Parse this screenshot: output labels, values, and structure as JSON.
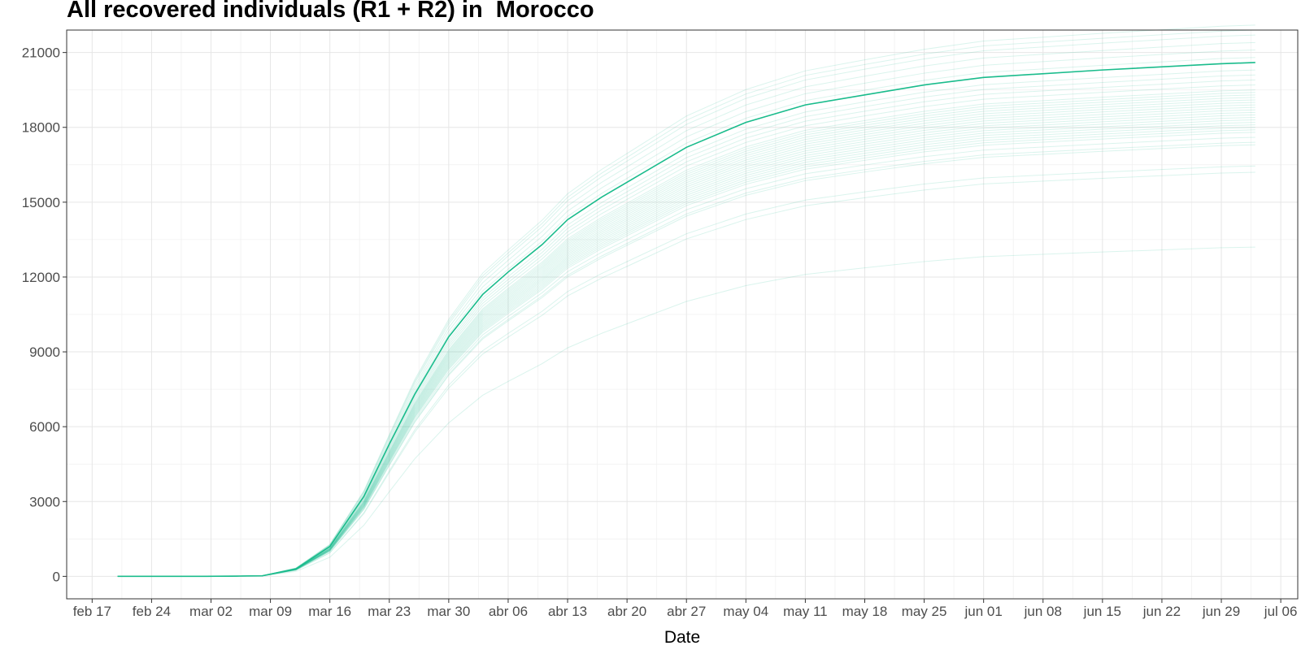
{
  "chart_data": {
    "type": "line",
    "title": "All recovered individuals (R1 + R2) in  Morocco",
    "xlabel": "Date",
    "ylabel": "",
    "x_domain": [
      "2020-02-14",
      "2020-07-08"
    ],
    "ylim": [
      -900,
      21900
    ],
    "x_ticks": [
      {
        "date": "2020-02-17",
        "label": "feb 17"
      },
      {
        "date": "2020-02-24",
        "label": "feb 24"
      },
      {
        "date": "2020-03-02",
        "label": "mar 02"
      },
      {
        "date": "2020-03-09",
        "label": "mar 09"
      },
      {
        "date": "2020-03-16",
        "label": "mar 16"
      },
      {
        "date": "2020-03-23",
        "label": "mar 23"
      },
      {
        "date": "2020-03-30",
        "label": "mar 30"
      },
      {
        "date": "2020-04-06",
        "label": "abr 06"
      },
      {
        "date": "2020-04-13",
        "label": "abr 13"
      },
      {
        "date": "2020-04-20",
        "label": "abr 20"
      },
      {
        "date": "2020-04-27",
        "label": "abr 27"
      },
      {
        "date": "2020-05-04",
        "label": "may 04"
      },
      {
        "date": "2020-05-11",
        "label": "may 11"
      },
      {
        "date": "2020-05-18",
        "label": "may 18"
      },
      {
        "date": "2020-05-25",
        "label": "may 25"
      },
      {
        "date": "2020-06-01",
        "label": "jun 01"
      },
      {
        "date": "2020-06-08",
        "label": "jun 08"
      },
      {
        "date": "2020-06-15",
        "label": "jun 15"
      },
      {
        "date": "2020-06-22",
        "label": "jun 22"
      },
      {
        "date": "2020-06-29",
        "label": "jun 29"
      },
      {
        "date": "2020-07-06",
        "label": "jul 06"
      }
    ],
    "y_ticks": [
      0,
      3000,
      6000,
      9000,
      12000,
      15000,
      18000,
      21000
    ],
    "y_tick_labels": [
      "0",
      "3000",
      "6000",
      "9000",
      "12000",
      "15000",
      "18000",
      "21000"
    ],
    "grid": true,
    "legend": "none",
    "line_color": "#1abc8c",
    "main_series": {
      "x": [
        "2020-02-20",
        "2020-03-01",
        "2020-03-08",
        "2020-03-12",
        "2020-03-16",
        "2020-03-20",
        "2020-03-23",
        "2020-03-26",
        "2020-03-30",
        "2020-04-03",
        "2020-04-06",
        "2020-04-10",
        "2020-04-13",
        "2020-04-17",
        "2020-04-20",
        "2020-04-27",
        "2020-05-04",
        "2020-05-11",
        "2020-05-18",
        "2020-05-25",
        "2020-06-01",
        "2020-06-15",
        "2020-06-29",
        "2020-07-03"
      ],
      "y": [
        0,
        0,
        20,
        300,
        1200,
        3200,
        5300,
        7300,
        9600,
        11300,
        12200,
        13300,
        14300,
        15200,
        15800,
        17200,
        18200,
        18900,
        19300,
        19700,
        20000,
        20300,
        20550,
        20600
      ]
    },
    "ensemble": {
      "x": [
        "2020-02-20",
        "2020-03-01",
        "2020-03-08",
        "2020-03-12",
        "2020-03-16",
        "2020-03-20",
        "2020-03-23",
        "2020-03-26",
        "2020-03-30",
        "2020-04-03",
        "2020-04-06",
        "2020-04-10",
        "2020-04-13",
        "2020-04-17",
        "2020-04-20",
        "2020-04-27",
        "2020-05-04",
        "2020-05-11",
        "2020-05-18",
        "2020-05-25",
        "2020-06-01",
        "2020-06-15",
        "2020-06-29",
        "2020-07-03"
      ],
      "base": [
        0,
        0,
        0.001,
        0.015,
        0.058,
        0.155,
        0.257,
        0.357,
        0.466,
        0.55,
        0.592,
        0.646,
        0.694,
        0.738,
        0.767,
        0.835,
        0.883,
        0.917,
        0.937,
        0.956,
        0.971,
        0.985,
        0.998,
        1.0
      ],
      "finals": [
        13200,
        16200,
        16450,
        17300,
        17400,
        17600,
        17800,
        17900,
        18000,
        18100,
        18200,
        18300,
        18400,
        18500,
        18600,
        18700,
        18800,
        18900,
        19000,
        19100,
        19200,
        19300,
        19400,
        19500,
        19700,
        19900,
        20100,
        20300,
        20600,
        20800,
        21100,
        21400,
        21700,
        21900,
        22100
      ]
    }
  }
}
